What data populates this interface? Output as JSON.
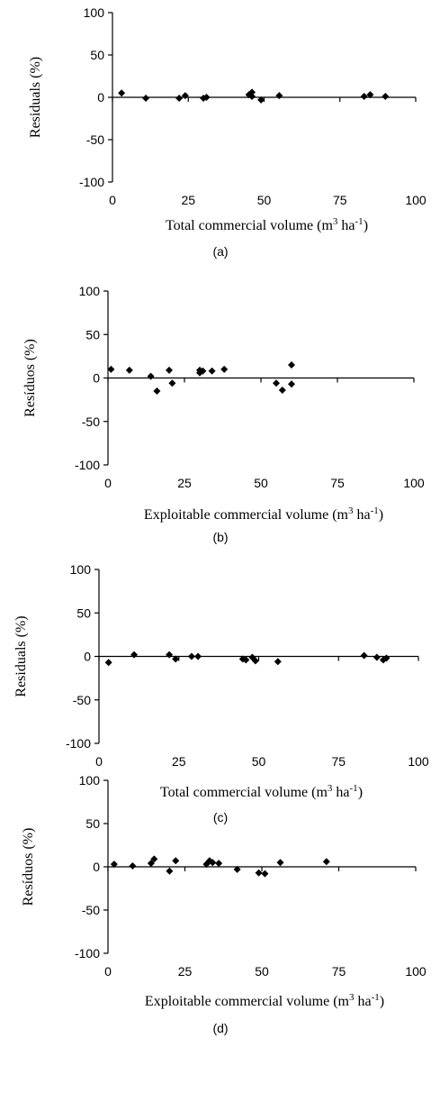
{
  "figure": {
    "panels": [
      {
        "label": "(a)",
        "ylabel": "Residuals (%)",
        "xlabel_main": "Total commercial volume (m",
        "xlabel_sup1": "3",
        "xlabel_mid": " ha",
        "xlabel_sup2": "-1",
        "xlabel_end": ")"
      },
      {
        "label": "(b)",
        "ylabel": "Resíduos (%)",
        "xlabel_main": "Exploitable commercial volume (m",
        "xlabel_sup1": "3",
        "xlabel_mid": " ha",
        "xlabel_sup2": "-1",
        "xlabel_end": ")"
      },
      {
        "label": "(c)",
        "ylabel": "Residuals (%)",
        "xlabel_main": "Total commercial volume (m",
        "xlabel_sup1": "3",
        "xlabel_mid": " ha",
        "xlabel_sup2": "-1",
        "xlabel_end": ")"
      },
      {
        "label": "(d)",
        "ylabel": "Resíduos (%)",
        "xlabel_main": "Exploitable commercial volume (m",
        "xlabel_sup1": "3",
        "xlabel_mid": " ha",
        "xlabel_sup2": "-1",
        "xlabel_end": ")"
      }
    ]
  },
  "chart_data": [
    {
      "type": "scatter",
      "title": "",
      "xlabel": "Total commercial volume (m3 ha-1)",
      "ylabel": "Residuals (%)",
      "xlim": [
        0,
        100
      ],
      "ylim": [
        -100,
        100
      ],
      "xticks": [
        "0",
        "25",
        "50",
        "75",
        "100"
      ],
      "yticks": [
        "100",
        "50",
        "0",
        "-50",
        "-100"
      ],
      "grid": false,
      "series": [
        {
          "x": [
            3,
            11,
            22,
            24,
            30,
            31,
            45,
            46,
            46,
            49,
            55,
            83,
            85,
            90
          ],
          "y": [
            5,
            -1,
            -1,
            2,
            -1,
            0,
            3,
            6,
            1,
            -3,
            2,
            1,
            3,
            1
          ]
        }
      ]
    },
    {
      "type": "scatter",
      "title": "",
      "xlabel": "Exploitable commercial volume (m3 ha-1)",
      "ylabel": "Resíduos (%)",
      "xlim": [
        0,
        100
      ],
      "ylim": [
        -100,
        100
      ],
      "xticks": [
        "0",
        "25",
        "50",
        "75",
        "100"
      ],
      "yticks": [
        "100",
        "50",
        "0",
        "-50",
        "-100"
      ],
      "grid": false,
      "series": [
        {
          "x": [
            1,
            7,
            14,
            16,
            20,
            21,
            30,
            30,
            31,
            34,
            38,
            55,
            57,
            60,
            60
          ],
          "y": [
            10,
            9,
            2,
            -15,
            9,
            -6,
            9,
            6,
            8,
            8,
            10,
            -6,
            -14,
            -7,
            15
          ]
        }
      ]
    },
    {
      "type": "scatter",
      "title": "",
      "xlabel": "Total commercial volume (m3 ha-1)",
      "ylabel": "Residuals (%)",
      "xlim": [
        0,
        100
      ],
      "ylim": [
        -100,
        100
      ],
      "xticks": [
        "0",
        "25",
        "50",
        "75",
        "100"
      ],
      "yticks": [
        "100",
        "50",
        "0",
        "-50",
        "-100"
      ],
      "grid": false,
      "series": [
        {
          "x": [
            3,
            11,
            22,
            24,
            29,
            31,
            45,
            46,
            48,
            49,
            56,
            83,
            87,
            89,
            90
          ],
          "y": [
            -7,
            2,
            2,
            -3,
            0,
            0,
            -3,
            -4,
            -1,
            -5,
            -6,
            1,
            -1,
            -4,
            -2
          ]
        }
      ]
    },
    {
      "type": "scatter",
      "title": "",
      "xlabel": "Exploitable commercial volume (m3 ha-1)",
      "ylabel": "Resíduos (%)",
      "xlim": [
        0,
        100
      ],
      "ylim": [
        -100,
        100
      ],
      "xticks": [
        "0",
        "25",
        "50",
        "75",
        "100"
      ],
      "yticks": [
        "100",
        "50",
        "0",
        "-50",
        "-100"
      ],
      "grid": false,
      "series": [
        {
          "x": [
            2,
            8,
            14,
            15,
            20,
            22,
            32,
            33,
            34,
            36,
            42,
            49,
            51,
            56,
            71
          ],
          "y": [
            3,
            1,
            4,
            9,
            -5,
            7,
            3,
            7,
            5,
            4,
            -3,
            -7,
            -8,
            5,
            6
          ]
        }
      ]
    }
  ]
}
